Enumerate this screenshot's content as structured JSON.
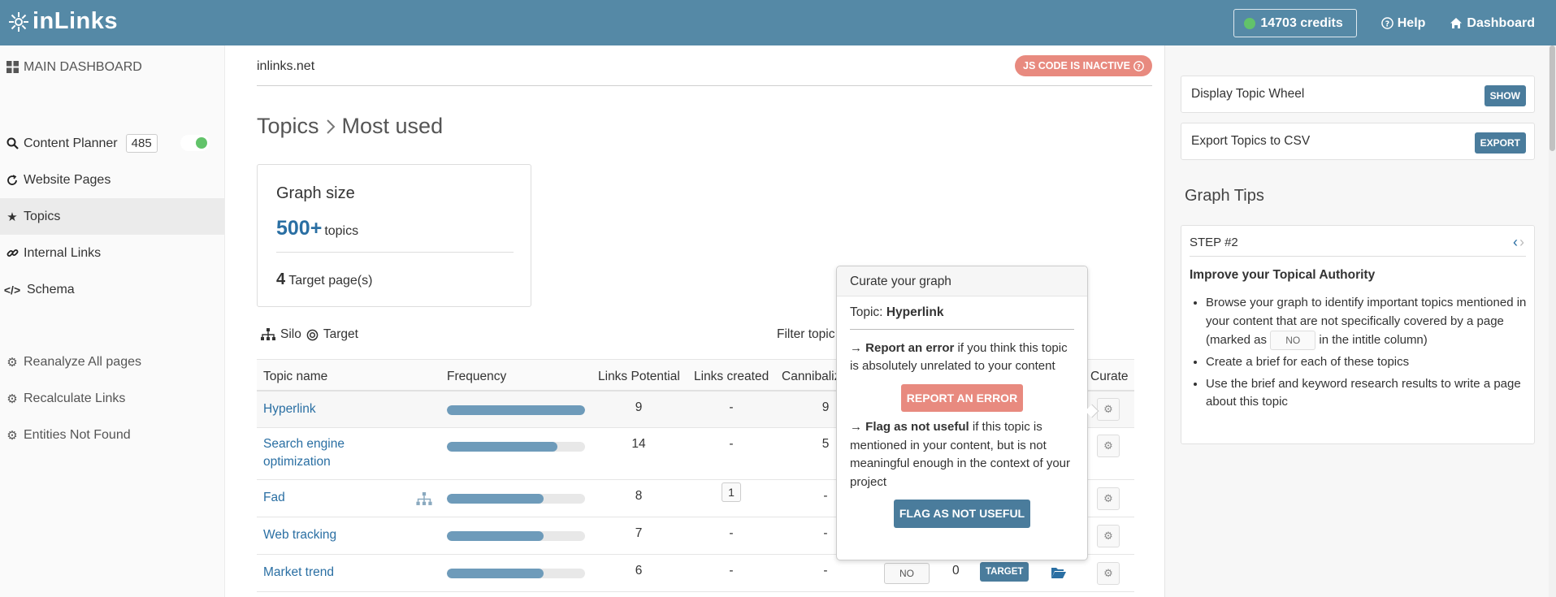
{
  "header": {
    "logo_text": "inLinks",
    "credits": "14703 credits",
    "help": "Help",
    "dashboard": "Dashboard"
  },
  "sidebar": {
    "main_dashboard": "MAIN DASHBOARD",
    "content_planner": "Content Planner",
    "content_planner_count": "485",
    "website_pages": "Website Pages",
    "topics": "Topics",
    "internal_links": "Internal Links",
    "schema": "Schema",
    "reanalyze": "Reanalyze All pages",
    "recalculate": "Recalculate Links",
    "entities_not_found": "Entities Not Found"
  },
  "main": {
    "site": "inlinks.net",
    "js_badge": "JS CODE IS INACTIVE",
    "breadcrumb_root": "Topics",
    "breadcrumb_current": "Most used",
    "graph": {
      "title": "Graph size",
      "count": "500+",
      "count_unit": "topics",
      "targets": "4",
      "targets_label": "Target page(s)"
    },
    "legend_silo": "Silo",
    "legend_target": "Target",
    "filter_label": "Filter topic",
    "columns": {
      "topic": "Topic name",
      "frequency": "Frequency",
      "links_potential": "Links Potential",
      "links_created": "Links created",
      "cannibal": "Cannibaliz",
      "curate": "Curate"
    },
    "rows": [
      {
        "name": "Hyperlink",
        "name2": "",
        "freq": 1.0,
        "potential": "9",
        "created": "-",
        "cannibal": "9"
      },
      {
        "name": "Search engine",
        "name2": "optimization",
        "freq": 0.8,
        "potential": "14",
        "created": "-",
        "cannibal": "5"
      },
      {
        "name": "Fad",
        "name2": "",
        "freq": 0.7,
        "potential": "8",
        "created": "1",
        "cannibal": "-"
      },
      {
        "name": "Web tracking",
        "name2": "",
        "freq": 0.7,
        "potential": "7",
        "created": "-",
        "cannibal": "-"
      },
      {
        "name": "Market trend",
        "name2": "",
        "freq": 0.7,
        "potential": "6",
        "created": "-",
        "cannibal": "-",
        "no": "NO",
        "zero": "0",
        "target": "TARGET"
      }
    ]
  },
  "popover": {
    "title": "Curate your graph",
    "topic_label": "Topic:",
    "topic_value": "Hyperlink",
    "report_strong": "Report an error",
    "report_text": " if you think this topic is absolutely unrelated to your content",
    "report_btn": "REPORT AN ERROR",
    "flag_strong": "Flag as not useful",
    "flag_text": " if this topic is mentioned in your content, but is not meaningful enough in the context of your project",
    "flag_btn": "FLAG AS NOT USEFUL"
  },
  "right": {
    "wheel_label": "Display Topic Wheel",
    "wheel_btn": "SHOW",
    "export_label": "Export Topics to CSV",
    "export_btn": "EXPORT",
    "tips_title": "Graph Tips",
    "step": "STEP #2",
    "step_title": "Improve your Topical Authority",
    "tip1_a": "Browse your graph to identify important topics mentioned in your content that are not specifically covered by a page",
    "tip1_b": "(marked as",
    "tip1_no": "NO",
    "tip1_c": "in the intitle column)",
    "tip2": "Create a brief for each of these topics",
    "tip3": "Use the brief and keyword research results to write a page about this topic"
  }
}
